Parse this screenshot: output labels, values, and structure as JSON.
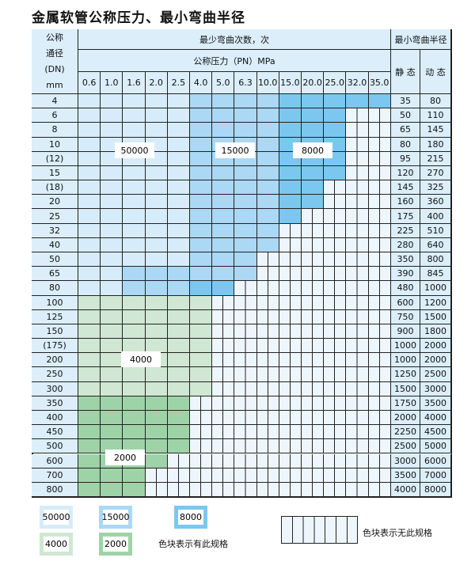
{
  "title": "金属软管公称压力、最小弯曲半径",
  "header": {
    "dn_label": [
      "公称",
      "通径",
      "(DN)",
      "mm"
    ],
    "cycles_label": "最少弯曲次数，次",
    "pressure_label": "公称压力（PN）MPa",
    "radius_label": "最小弯曲半径",
    "static_label": "静 态",
    "dynamic_label": "动 态",
    "pressures": [
      "0.6",
      "1.0",
      "1.6",
      "2.0",
      "2.5",
      "4.0",
      "5.0",
      "6.3",
      "10.0",
      "15.0",
      "20.0",
      "25.0",
      "32.0",
      "35.0"
    ]
  },
  "colors": {
    "50000": "#d7ecfa",
    "15000": "#aad8f5",
    "8000": "#7cc7ef",
    "4000": "#cfe7d3",
    "2000": "#9ed3a8",
    "none": "#eef6fd"
  },
  "rows": [
    {
      "dn": "4",
      "static": "35",
      "dynamic": "80",
      "cells": "LLLLLMMMMDDDDD"
    },
    {
      "dn": "6",
      "static": "50",
      "dynamic": "110",
      "cells": "LLLLLMMMMDDDXX"
    },
    {
      "dn": "8",
      "static": "65",
      "dynamic": "145",
      "cells": "LLLLLMMMMDDDXX"
    },
    {
      "dn": "10",
      "static": "80",
      "dynamic": "180",
      "cells": "LLLLLMMMMDDDXX"
    },
    {
      "dn": "(12)",
      "static": "95",
      "dynamic": "215",
      "cells": "LLLLLMMMMDDDXX"
    },
    {
      "dn": "15",
      "static": "120",
      "dynamic": "270",
      "cells": "LLLLLMMMMDDDXX"
    },
    {
      "dn": "(18)",
      "static": "145",
      "dynamic": "325",
      "cells": "LLLLLMMMMDDXXX"
    },
    {
      "dn": "20",
      "static": "160",
      "dynamic": "360",
      "cells": "LLLLLMMMMDDXXX"
    },
    {
      "dn": "25",
      "static": "175",
      "dynamic": "400",
      "cells": "LLLLLMMMMDXXXX"
    },
    {
      "dn": "32",
      "static": "225",
      "dynamic": "510",
      "cells": "LLLLLMMMMXXXXX"
    },
    {
      "dn": "40",
      "static": "280",
      "dynamic": "640",
      "cells": "LLLLLMMMMXXXXX"
    },
    {
      "dn": "50",
      "static": "350",
      "dynamic": "800",
      "cells": "LLLLLMMMXXXXXX"
    },
    {
      "dn": "65",
      "static": "390",
      "dynamic": "845",
      "cells": "LLMMMMMMXXXXXX"
    },
    {
      "dn": "80",
      "static": "480",
      "dynamic": "1000",
      "cells": "LLMMMDDXXXXXXX"
    },
    {
      "dn": "100",
      "static": "600",
      "dynamic": "1200",
      "cells": "GGGGGGXXXXXXXX"
    },
    {
      "dn": "125",
      "static": "750",
      "dynamic": "1500",
      "cells": "GGGGGGXXXXXXXX"
    },
    {
      "dn": "150",
      "static": "900",
      "dynamic": "1800",
      "cells": "GGGGGGXXXXXXXX"
    },
    {
      "dn": "(175)",
      "static": "1000",
      "dynamic": "2000",
      "cells": "GGGGGGXXXXXXXX"
    },
    {
      "dn": "200",
      "static": "1000",
      "dynamic": "2000",
      "cells": "GGGGGGXXXXXXXX"
    },
    {
      "dn": "250",
      "static": "1250",
      "dynamic": "2500",
      "cells": "GGGGGGXXXXXXXX"
    },
    {
      "dn": "300",
      "static": "1500",
      "dynamic": "3000",
      "cells": "GGGGGGXXXXXXXX"
    },
    {
      "dn": "350",
      "static": "1750",
      "dynamic": "3500",
      "cells": "HHHHHXXXXXXXXX"
    },
    {
      "dn": "400",
      "static": "2000",
      "dynamic": "4000",
      "cells": "HHHHHXXXXXXXXX"
    },
    {
      "dn": "450",
      "static": "2250",
      "dynamic": "4500",
      "cells": "HHHHHXXXXXXXXX"
    },
    {
      "dn": "500",
      "static": "2500",
      "dynamic": "5000",
      "cells": "HHHHHXXXXXXXXX"
    },
    {
      "dn": "600",
      "static": "3000",
      "dynamic": "6000",
      "cells": "HHHHXXXXXXXXXX"
    },
    {
      "dn": "700",
      "static": "3500",
      "dynamic": "7000",
      "cells": "HHHXXXXXXXXXXX"
    },
    {
      "dn": "800",
      "static": "4000",
      "dynamic": "8000",
      "cells": "HHHXXXXXXXXXXX"
    }
  ],
  "region_labels": [
    "50000",
    "15000",
    "8000",
    "4000",
    "2000"
  ],
  "legend": {
    "items": [
      "50000",
      "15000",
      "8000",
      "4000",
      "2000"
    ],
    "has_spec": "色块表示有此规格",
    "no_spec": "色块表示无此规格"
  }
}
